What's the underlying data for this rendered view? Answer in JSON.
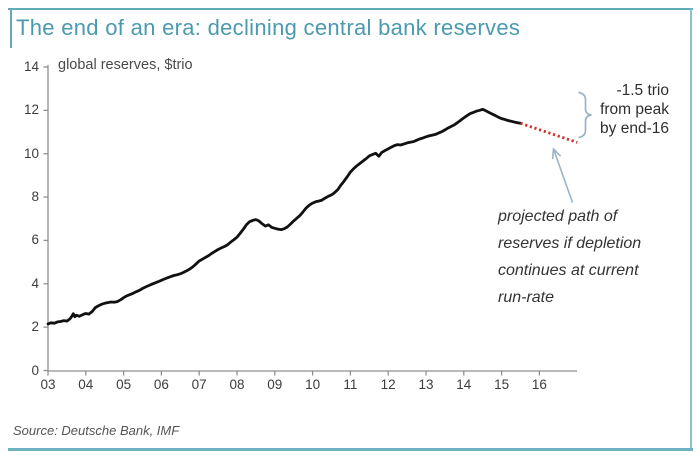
{
  "header": {
    "title": "The end of an era: declining central bank reserves"
  },
  "colors": {
    "accent_teal": "#4b9ab0",
    "frame_teal": "#6fb3c3",
    "reserves_line": "#111111",
    "projection_red": "#cc3328",
    "annotation_blue": "#9bb3c6",
    "axis_gray": "#8f8f8f",
    "text_dark": "#2e2e2e"
  },
  "chart": {
    "inner_label": "global reserves, $trio",
    "annotations": {
      "drop_label_lines": [
        "-1.5 trio",
        "from peak",
        "by end-16"
      ],
      "projection_note_lines": [
        "projected path of",
        "reserves  if depletion",
        "continues at current",
        "run-rate"
      ]
    }
  },
  "footer": {
    "source": "Source: Deutsche Bank, IMF"
  },
  "chart_data": {
    "type": "line",
    "title": "The end of an era: declining central bank reserves",
    "ylabel": "global reserves, $trio",
    "xlabel": "",
    "xlim": [
      2003,
      2017
    ],
    "ylim": [
      0,
      14
    ],
    "grid": false,
    "legend": "none",
    "y_ticks": [
      0,
      2,
      4,
      6,
      8,
      10,
      12,
      14
    ],
    "x_ticks": [
      {
        "year": 2003,
        "label": "03"
      },
      {
        "year": 2004,
        "label": "04"
      },
      {
        "year": 2005,
        "label": "05"
      },
      {
        "year": 2006,
        "label": "06"
      },
      {
        "year": 2007,
        "label": "07"
      },
      {
        "year": 2008,
        "label": "08"
      },
      {
        "year": 2009,
        "label": "09"
      },
      {
        "year": 2010,
        "label": "10"
      },
      {
        "year": 2011,
        "label": "11"
      },
      {
        "year": 2012,
        "label": "12"
      },
      {
        "year": 2013,
        "label": "13"
      },
      {
        "year": 2014,
        "label": "14"
      },
      {
        "year": 2015,
        "label": "15"
      },
      {
        "year": 2016,
        "label": "16"
      }
    ],
    "series": [
      {
        "name": "global reserves ($trio)",
        "style": "solid",
        "color": "#111111",
        "points": [
          [
            2003.0,
            2.15
          ],
          [
            2003.08,
            2.2
          ],
          [
            2003.17,
            2.18
          ],
          [
            2003.25,
            2.24
          ],
          [
            2003.33,
            2.26
          ],
          [
            2003.42,
            2.3
          ],
          [
            2003.5,
            2.28
          ],
          [
            2003.58,
            2.38
          ],
          [
            2003.63,
            2.5
          ],
          [
            2003.67,
            2.62
          ],
          [
            2003.71,
            2.48
          ],
          [
            2003.75,
            2.55
          ],
          [
            2003.83,
            2.5
          ],
          [
            2003.92,
            2.58
          ],
          [
            2004.0,
            2.63
          ],
          [
            2004.08,
            2.6
          ],
          [
            2004.17,
            2.72
          ],
          [
            2004.25,
            2.9
          ],
          [
            2004.33,
            2.98
          ],
          [
            2004.42,
            3.06
          ],
          [
            2004.5,
            3.1
          ],
          [
            2004.58,
            3.13
          ],
          [
            2004.67,
            3.16
          ],
          [
            2004.75,
            3.15
          ],
          [
            2004.83,
            3.18
          ],
          [
            2004.92,
            3.26
          ],
          [
            2005.0,
            3.36
          ],
          [
            2005.08,
            3.44
          ],
          [
            2005.17,
            3.5
          ],
          [
            2005.25,
            3.56
          ],
          [
            2005.33,
            3.63
          ],
          [
            2005.42,
            3.7
          ],
          [
            2005.5,
            3.78
          ],
          [
            2005.58,
            3.85
          ],
          [
            2005.67,
            3.92
          ],
          [
            2005.75,
            3.98
          ],
          [
            2005.83,
            4.04
          ],
          [
            2005.92,
            4.1
          ],
          [
            2006.0,
            4.16
          ],
          [
            2006.08,
            4.22
          ],
          [
            2006.17,
            4.28
          ],
          [
            2006.25,
            4.33
          ],
          [
            2006.33,
            4.38
          ],
          [
            2006.42,
            4.42
          ],
          [
            2006.5,
            4.46
          ],
          [
            2006.58,
            4.52
          ],
          [
            2006.67,
            4.6
          ],
          [
            2006.75,
            4.68
          ],
          [
            2006.83,
            4.78
          ],
          [
            2006.92,
            4.92
          ],
          [
            2007.0,
            5.05
          ],
          [
            2007.08,
            5.13
          ],
          [
            2007.17,
            5.22
          ],
          [
            2007.25,
            5.3
          ],
          [
            2007.33,
            5.4
          ],
          [
            2007.42,
            5.5
          ],
          [
            2007.5,
            5.58
          ],
          [
            2007.58,
            5.65
          ],
          [
            2007.67,
            5.72
          ],
          [
            2007.75,
            5.8
          ],
          [
            2007.83,
            5.92
          ],
          [
            2007.92,
            6.04
          ],
          [
            2008.0,
            6.15
          ],
          [
            2008.08,
            6.32
          ],
          [
            2008.17,
            6.52
          ],
          [
            2008.25,
            6.72
          ],
          [
            2008.33,
            6.86
          ],
          [
            2008.42,
            6.93
          ],
          [
            2008.5,
            6.96
          ],
          [
            2008.58,
            6.9
          ],
          [
            2008.67,
            6.76
          ],
          [
            2008.75,
            6.66
          ],
          [
            2008.83,
            6.72
          ],
          [
            2008.92,
            6.6
          ],
          [
            2009.0,
            6.56
          ],
          [
            2009.08,
            6.52
          ],
          [
            2009.17,
            6.5
          ],
          [
            2009.25,
            6.54
          ],
          [
            2009.33,
            6.62
          ],
          [
            2009.42,
            6.76
          ],
          [
            2009.5,
            6.9
          ],
          [
            2009.58,
            7.02
          ],
          [
            2009.67,
            7.16
          ],
          [
            2009.75,
            7.32
          ],
          [
            2009.83,
            7.5
          ],
          [
            2009.92,
            7.64
          ],
          [
            2010.0,
            7.72
          ],
          [
            2010.08,
            7.78
          ],
          [
            2010.17,
            7.82
          ],
          [
            2010.25,
            7.86
          ],
          [
            2010.33,
            7.95
          ],
          [
            2010.42,
            8.04
          ],
          [
            2010.5,
            8.1
          ],
          [
            2010.58,
            8.2
          ],
          [
            2010.67,
            8.35
          ],
          [
            2010.75,
            8.55
          ],
          [
            2010.83,
            8.73
          ],
          [
            2010.92,
            8.95
          ],
          [
            2011.0,
            9.15
          ],
          [
            2011.08,
            9.3
          ],
          [
            2011.17,
            9.44
          ],
          [
            2011.25,
            9.55
          ],
          [
            2011.33,
            9.66
          ],
          [
            2011.42,
            9.78
          ],
          [
            2011.5,
            9.9
          ],
          [
            2011.58,
            9.96
          ],
          [
            2011.67,
            10.02
          ],
          [
            2011.75,
            9.88
          ],
          [
            2011.83,
            10.06
          ],
          [
            2011.92,
            10.15
          ],
          [
            2012.0,
            10.22
          ],
          [
            2012.08,
            10.3
          ],
          [
            2012.17,
            10.38
          ],
          [
            2012.25,
            10.42
          ],
          [
            2012.33,
            10.4
          ],
          [
            2012.42,
            10.45
          ],
          [
            2012.5,
            10.5
          ],
          [
            2012.58,
            10.53
          ],
          [
            2012.67,
            10.56
          ],
          [
            2012.75,
            10.62
          ],
          [
            2012.83,
            10.68
          ],
          [
            2012.92,
            10.73
          ],
          [
            2013.0,
            10.78
          ],
          [
            2013.08,
            10.82
          ],
          [
            2013.17,
            10.86
          ],
          [
            2013.25,
            10.89
          ],
          [
            2013.33,
            10.95
          ],
          [
            2013.42,
            11.02
          ],
          [
            2013.5,
            11.1
          ],
          [
            2013.58,
            11.18
          ],
          [
            2013.67,
            11.26
          ],
          [
            2013.75,
            11.33
          ],
          [
            2013.83,
            11.43
          ],
          [
            2013.92,
            11.55
          ],
          [
            2014.0,
            11.65
          ],
          [
            2014.08,
            11.75
          ],
          [
            2014.17,
            11.85
          ],
          [
            2014.25,
            11.9
          ],
          [
            2014.33,
            11.96
          ],
          [
            2014.42,
            12.0
          ],
          [
            2014.5,
            12.05
          ],
          [
            2014.58,
            11.98
          ],
          [
            2014.67,
            11.9
          ],
          [
            2014.75,
            11.83
          ],
          [
            2014.83,
            11.76
          ],
          [
            2014.92,
            11.68
          ],
          [
            2015.0,
            11.62
          ],
          [
            2015.08,
            11.58
          ],
          [
            2015.17,
            11.53
          ],
          [
            2015.25,
            11.5
          ],
          [
            2015.33,
            11.46
          ],
          [
            2015.42,
            11.43
          ],
          [
            2015.5,
            11.4
          ]
        ]
      },
      {
        "name": "projected path of reserves",
        "style": "dotted",
        "color": "#cc3328",
        "points": [
          [
            2015.5,
            11.4
          ],
          [
            2017.0,
            10.52
          ]
        ]
      }
    ]
  }
}
